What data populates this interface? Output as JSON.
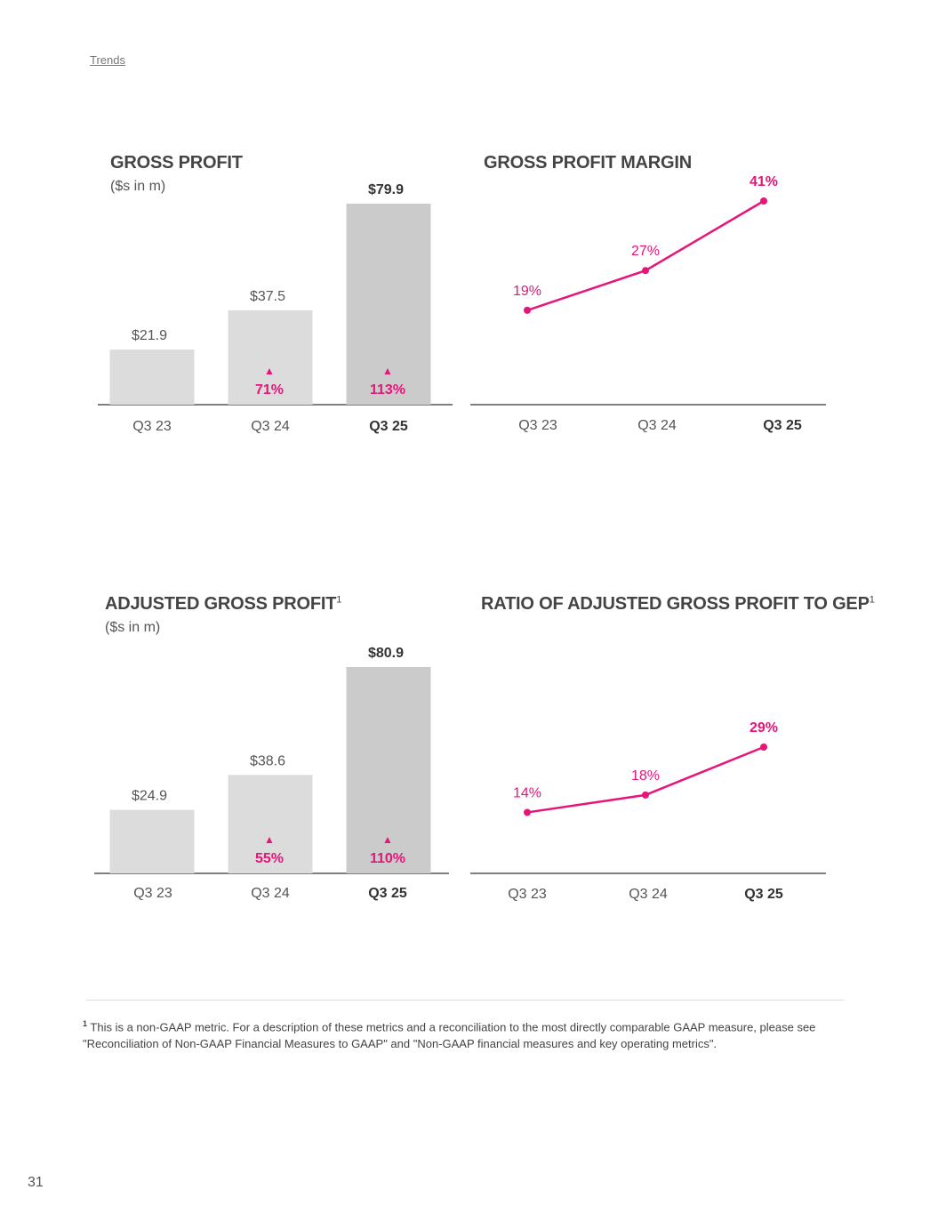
{
  "header": {
    "breadcrumb": "Trends"
  },
  "footnote": {
    "marker": "1",
    "text": "This is a non-GAAP metric. For a description of these metrics and a reconciliation to the most directly comparable GAAP measure, please see \"Reconciliation of Non-GAAP Financial Measures to GAAP\" and \"Non-GAAP financial measures and key operating metrics\"."
  },
  "page_number": "31",
  "colors": {
    "accent": "#e6157a",
    "bar_light": "#dcdcdc",
    "bar_dark": "#cbcbcb",
    "axis": "#555555",
    "text": "#555555"
  },
  "chart_data": [
    {
      "type": "bar",
      "title": "GROSS PROFIT",
      "title_sup": "",
      "subtitle": "($s in m)",
      "categories": [
        "Q3 23",
        "Q3 24",
        "Q3 25"
      ],
      "values": [
        21.9,
        37.5,
        79.9
      ],
      "value_labels": [
        "$21.9",
        "$37.5",
        "$79.9"
      ],
      "growth_labels": [
        "",
        "71%",
        "113%"
      ],
      "growth_marker": "▲",
      "ylim": [
        0,
        85
      ],
      "highlight_index": 2
    },
    {
      "type": "line",
      "title": "GROSS PROFIT MARGIN",
      "title_sup": "",
      "subtitle": "",
      "categories": [
        "Q3 23",
        "Q3 24",
        "Q3 25"
      ],
      "values": [
        19,
        27,
        41
      ],
      "value_labels": [
        "19%",
        "27%",
        "41%"
      ],
      "ylim": [
        0,
        48
      ],
      "highlight_index": 2
    },
    {
      "type": "bar",
      "title": "ADJUSTED GROSS PROFIT",
      "title_sup": "1",
      "subtitle": "($s in m)",
      "categories": [
        "Q3 23",
        "Q3 24",
        "Q3 25"
      ],
      "values": [
        24.9,
        38.6,
        80.9
      ],
      "value_labels": [
        "$24.9",
        "$38.6",
        "$80.9"
      ],
      "growth_labels": [
        "",
        "55%",
        "110%"
      ],
      "growth_marker": "▲",
      "ylim": [
        0,
        86
      ],
      "highlight_index": 2
    },
    {
      "type": "line",
      "title": "RATIO OF ADJUSTED GROSS PROFIT TO GEP",
      "title_sup": "1",
      "subtitle": "",
      "categories": [
        "Q3 23",
        "Q3 24",
        "Q3 25"
      ],
      "values": [
        14,
        18,
        29
      ],
      "value_labels": [
        "14%",
        "18%",
        "29%"
      ],
      "ylim": [
        0,
        40
      ],
      "highlight_index": 2
    }
  ]
}
